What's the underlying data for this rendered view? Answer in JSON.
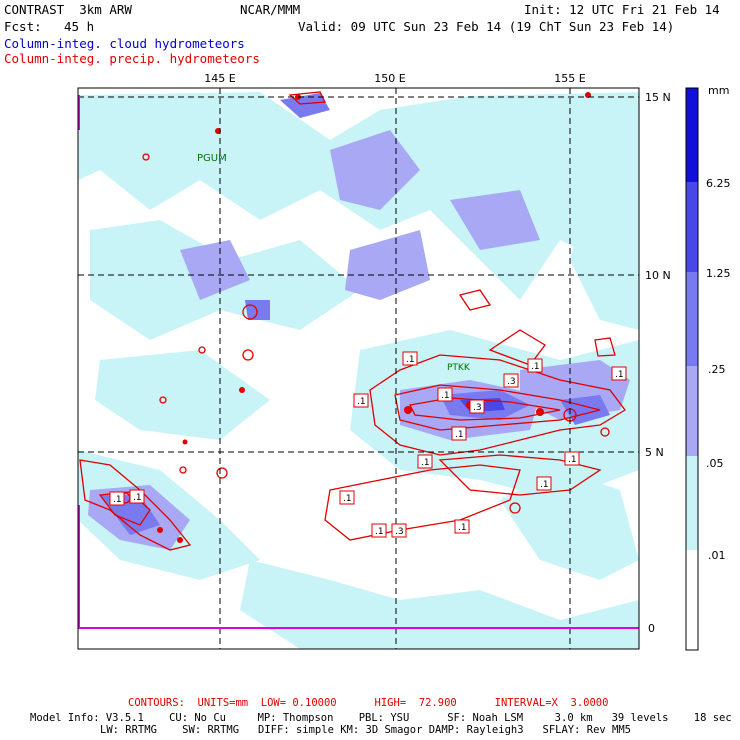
{
  "header": {
    "model": "CONTRAST  3km ARW",
    "center": "NCAR/MMM",
    "init": "Init: 12 UTC Fri 21 Feb 14",
    "fcst_label": "Fcst:",
    "fcst_value": "45 h",
    "valid": "Valid: 09 UTC Sun 23 Feb 14 (19 ChT Sun 23 Feb 14)",
    "field1": "Column-integ. cloud hydrometeors",
    "field2": "Column-integ. precip. hydrometeors"
  },
  "map": {
    "lon_labels": [
      "145 E",
      "150 E",
      "155 E"
    ],
    "lat_labels": [
      "15 N",
      "10 N",
      "5 N"
    ],
    "station_labels": [
      "PGUM",
      "PTKK"
    ],
    "contour_labels": [
      ".1",
      ".1",
      ".1",
      ".3",
      ".1",
      ".1",
      ".1",
      ".1",
      ".1",
      ".1",
      ".1",
      ".3",
      ".1",
      ".1",
      ".1",
      ".1",
      ".3"
    ]
  },
  "colorbar": {
    "unit": "mm",
    "levels": [
      "6.25",
      "1.25",
      ".25",
      ".05",
      ".01",
      "0"
    ],
    "colors": [
      "#1010d8",
      "#4848e8",
      "#7a7af0",
      "#a8a8f4",
      "#c8f4f8",
      "#ffffff"
    ]
  },
  "footer": {
    "contours": "CONTOURS:  UNITS=mm  LOW= 0.10000      HIGH=  72.900      INTERVAL=X  3.0000",
    "model_info_1": "Model Info: V3.5.1    CU: No Cu     MP: Thompson    PBL: YSU      SF: Noah LSM     3.0 km   39 levels    18 sec",
    "model_info_2": "LW: RRTMG    SW: RRTMG   DIFF: simple KM: 3D Smagor DAMP: Rayleigh3   SFLAY: Rev MM5"
  }
}
